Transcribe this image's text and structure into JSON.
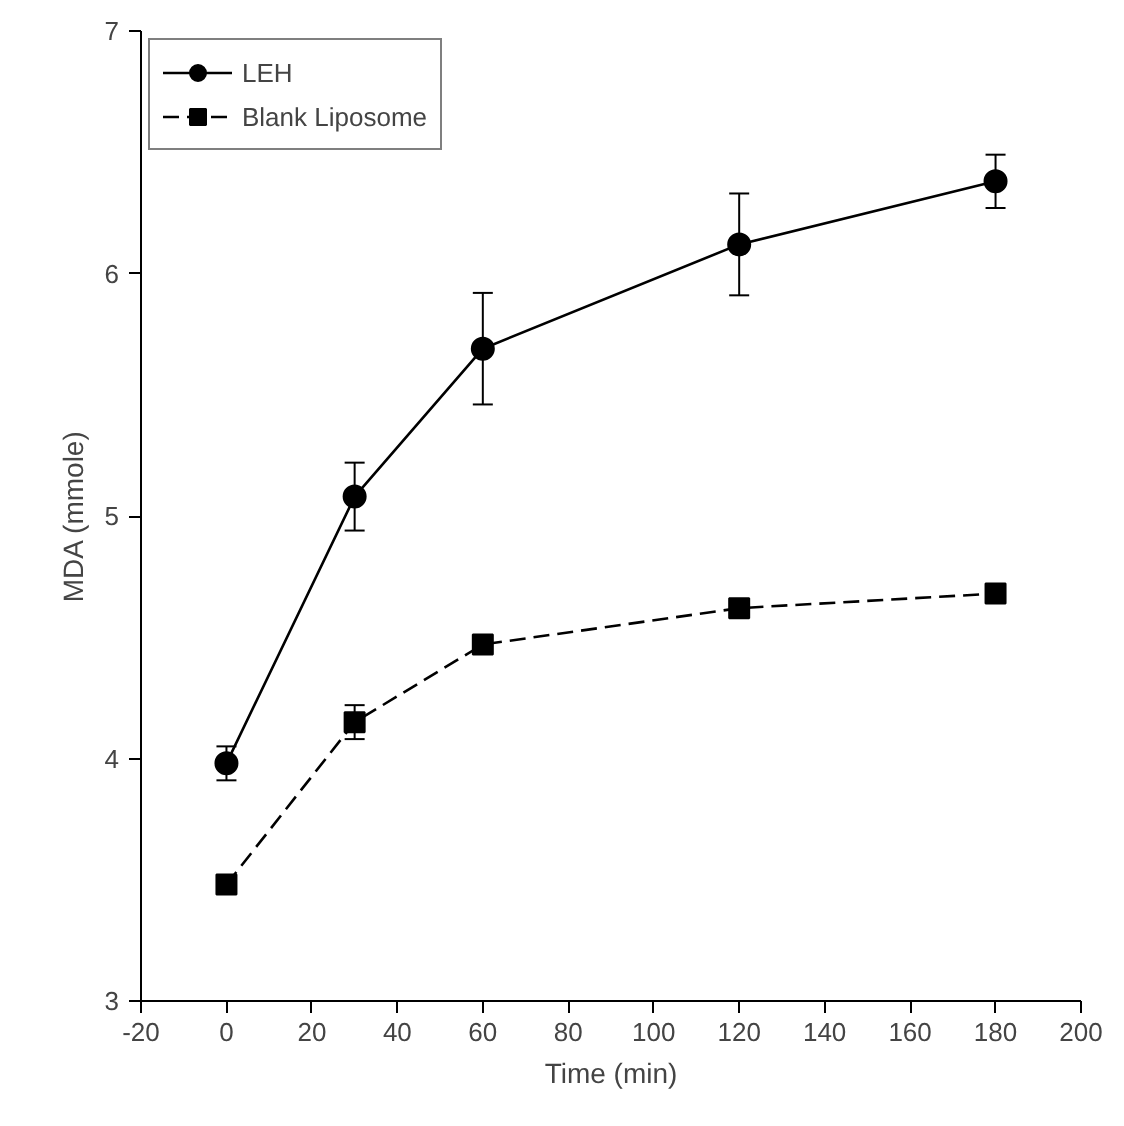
{
  "chart_data": {
    "type": "line",
    "xlabel": "Time (min)",
    "ylabel": "MDA (mmole)",
    "x": [
      0,
      30,
      60,
      120,
      180
    ],
    "series": [
      {
        "name": "LEH",
        "color": "#000000",
        "marker": "circle",
        "line_style": "solid",
        "values": [
          3.98,
          5.08,
          5.69,
          6.12,
          6.38
        ],
        "errors": [
          0.07,
          0.14,
          0.23,
          0.21,
          0.11
        ]
      },
      {
        "name": "Blank Liposome",
        "color": "#000000",
        "marker": "square",
        "line_style": "dashed",
        "values": [
          3.48,
          4.15,
          4.47,
          4.62,
          4.68
        ],
        "errors": [
          0.02,
          0.07,
          0.02,
          0.03,
          0.03
        ]
      }
    ],
    "xlim": [
      -20,
      200
    ],
    "xticks": [
      -20,
      0,
      20,
      40,
      60,
      80,
      100,
      120,
      140,
      160,
      180,
      200
    ],
    "ylim": [
      3,
      7
    ],
    "yticks": [
      3,
      4,
      5,
      6,
      7
    ],
    "grid": false,
    "legend": "top left"
  }
}
